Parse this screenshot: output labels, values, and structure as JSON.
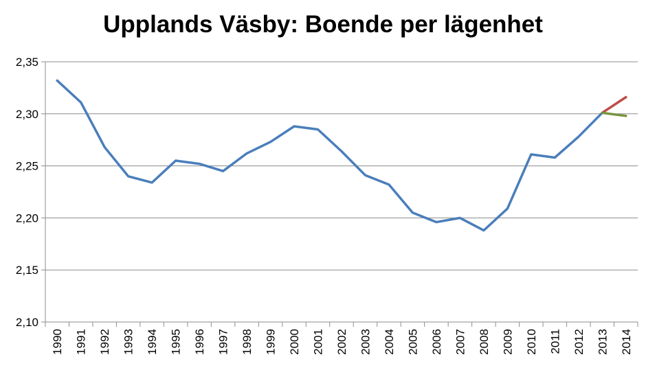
{
  "chart_data": {
    "type": "line",
    "title": "Upplands Väsby: Boende per lägenhet",
    "xlabel": "",
    "ylabel": "",
    "ylim": [
      2.1,
      2.35
    ],
    "y_ticks": [
      "2,10",
      "2,15",
      "2,20",
      "2,25",
      "2,30",
      "2,35"
    ],
    "grid": "horizontal",
    "categories": [
      "1990",
      "1991",
      "1992",
      "1993",
      "1994",
      "1995",
      "1996",
      "1997",
      "1998",
      "1999",
      "2000",
      "2001",
      "2002",
      "2003",
      "2004",
      "2005",
      "2006",
      "2007",
      "2008",
      "2009",
      "2010",
      "2011",
      "2012",
      "2013",
      "2014"
    ],
    "series": [
      {
        "color": "#4a7ebb",
        "values": [
          2.332,
          2.311,
          2.268,
          2.24,
          2.234,
          2.255,
          2.252,
          2.245,
          2.262,
          2.273,
          2.288,
          2.285,
          2.264,
          2.241,
          2.232,
          2.205,
          2.196,
          2.2,
          2.188,
          2.209,
          2.261,
          2.258,
          2.278,
          2.301,
          null
        ]
      },
      {
        "color": "#be4b48",
        "values": [
          null,
          null,
          null,
          null,
          null,
          null,
          null,
          null,
          null,
          null,
          null,
          null,
          null,
          null,
          null,
          null,
          null,
          null,
          null,
          null,
          null,
          null,
          null,
          2.301,
          2.316
        ]
      },
      {
        "color": "#77933c",
        "values": [
          null,
          null,
          null,
          null,
          null,
          null,
          null,
          null,
          null,
          null,
          null,
          null,
          null,
          null,
          null,
          null,
          null,
          null,
          null,
          null,
          null,
          null,
          null,
          2.301,
          2.298
        ]
      }
    ]
  }
}
